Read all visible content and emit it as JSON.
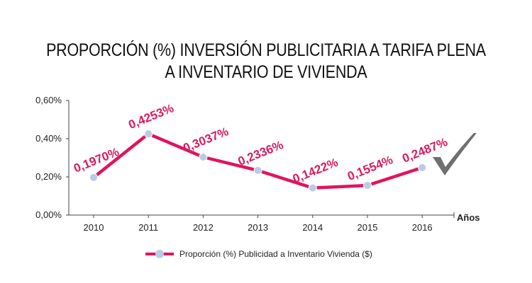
{
  "colors": {
    "line": "#e0145f",
    "marker": "#b8cce4",
    "label": "#d81b60",
    "axis": "#444444",
    "check": "#6f6f6f"
  },
  "decoration": {
    "icon": "checkmark-icon"
  },
  "chart_data": {
    "type": "line",
    "title": "PROPORCIÓN (%) INVERSIÓN PUBLICITARIA A TARIFA PLENA A INVENTARIO DE VIVIENDA",
    "title_lines": [
      "PROPORCIÓN (%) INVERSIÓN PUBLICITARIA A TARIFA PLENA",
      "A INVENTARIO DE VIVIENDA"
    ],
    "xlabel": "Años",
    "ylabel": "",
    "categories": [
      "2010",
      "2011",
      "2012",
      "2013",
      "2014",
      "2015",
      "2016"
    ],
    "ylim": [
      0,
      0.6
    ],
    "yticks": [
      0,
      0.2,
      0.4,
      0.6
    ],
    "ytick_labels": [
      "0,00%",
      "0,20%",
      "0,40%",
      "0,60%"
    ],
    "grid": false,
    "legend_position": "bottom",
    "series": [
      {
        "name": "Proporción (%) Publicidad a Inventario Vivienda ($)",
        "values": [
          0.197,
          0.4253,
          0.3037,
          0.2336,
          0.1422,
          0.1554,
          0.2487
        ],
        "labels": [
          "0,1970%",
          "0,4253%",
          "0,3037%",
          "0,2336%",
          "0,1422%",
          "0,1554%",
          "0,2487%"
        ]
      }
    ]
  }
}
